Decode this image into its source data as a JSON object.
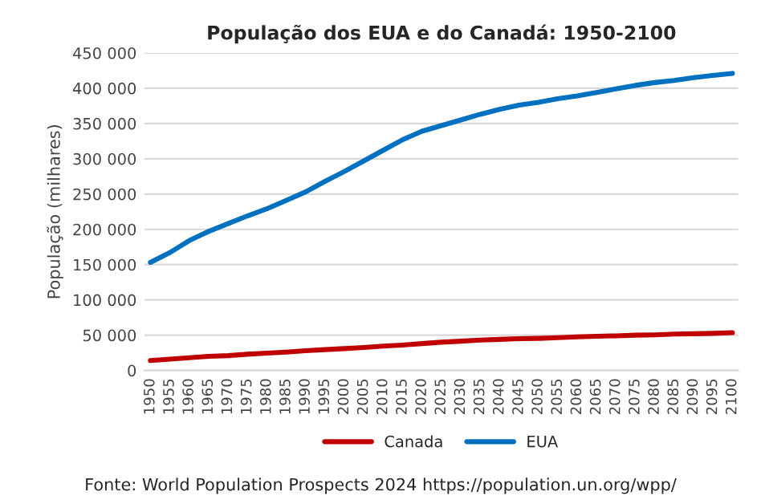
{
  "chart_data": {
    "type": "line",
    "title": "População dos EUA e do Canadá: 1950-2100",
    "ylabel": "População (milhares)",
    "categories": [
      "1950",
      "1955",
      "1960",
      "1965",
      "1970",
      "1975",
      "1980",
      "1985",
      "1990",
      "1995",
      "2000",
      "2005",
      "2010",
      "2015",
      "2020",
      "2025",
      "2030",
      "2035",
      "2040",
      "2045",
      "2050",
      "2055",
      "2060",
      "2065",
      "2070",
      "2075",
      "2080",
      "2085",
      "2090",
      "2095",
      "2100"
    ],
    "series": [
      {
        "name": "Canada",
        "color": "#c00000",
        "values": [
          14000,
          16000,
          18000,
          20000,
          21000,
          23000,
          24500,
          26000,
          28000,
          29500,
          31000,
          32500,
          34500,
          36000,
          38000,
          40000,
          41500,
          43000,
          44000,
          45000,
          45500,
          46500,
          47500,
          48500,
          49000,
          50000,
          50500,
          51500,
          52000,
          52500,
          53500
        ]
      },
      {
        "name": "EUA",
        "color": "#0070c0",
        "values": [
          153000,
          167000,
          184000,
          197000,
          208000,
          219000,
          229000,
          241000,
          253000,
          268000,
          282000,
          297000,
          312000,
          327000,
          339000,
          347000,
          355000,
          363000,
          370000,
          376000,
          380000,
          385000,
          389000,
          394000,
          399000,
          404000,
          408000,
          411000,
          415000,
          418000,
          421000
        ]
      }
    ],
    "ylim": [
      0,
      450000
    ],
    "yticks": [
      {
        "value": 0,
        "label": "0"
      },
      {
        "value": 50000,
        "label": "50 000"
      },
      {
        "value": 100000,
        "label": "100 000"
      },
      {
        "value": 150000,
        "label": "150 000"
      },
      {
        "value": 200000,
        "label": "200 000"
      },
      {
        "value": 250000,
        "label": "250 000"
      },
      {
        "value": 300000,
        "label": "300 000"
      },
      {
        "value": 350000,
        "label": "350 000"
      },
      {
        "value": 400000,
        "label": "400 000"
      },
      {
        "value": 450000,
        "label": "450 000"
      }
    ],
    "grid": "y",
    "legend": "bottom",
    "marker": "none",
    "line_style": "solid",
    "annotations": [
      "Fonte: World Population Prospects 2024 https://population.un.org/wpp/"
    ]
  }
}
